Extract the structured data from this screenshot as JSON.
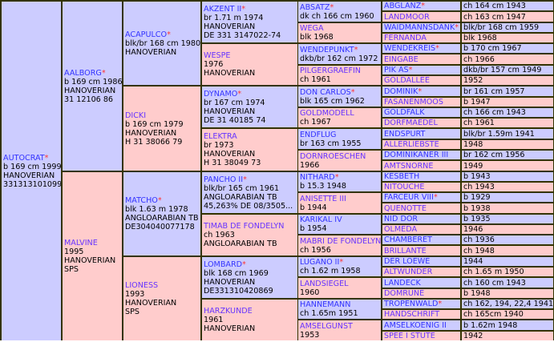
{
  "colors": {
    "sire": "#ccccff",
    "dam": "#ffcccc",
    "border": "#333300",
    "name": "#3333ff",
    "star": "#ff3333"
  },
  "gen": [
    [
      {
        "name": "AUTOCRAT",
        "star": true,
        "lines": [
          "b 169 cm 1999",
          "HANOVERIAN",
          "331313101099"
        ]
      }
    ],
    [
      {
        "name": "AALBORG",
        "star": true,
        "lines": [
          "b 169 cm 1986",
          "HANOVERIAN",
          "31 12106 86"
        ]
      },
      {
        "name": "MALVINE",
        "star": false,
        "lines": [
          "1995",
          "HANOVERIAN",
          "SPS"
        ]
      }
    ],
    [
      {
        "name": "ACAPULCO",
        "star": true,
        "lines": [
          "blk/br 168 cm 1980",
          "HANOVERIAN"
        ]
      },
      {
        "name": "DICKI",
        "star": false,
        "lines": [
          "b 169 cm 1979",
          "HANOVERIAN",
          "H 31 38066 79"
        ]
      },
      {
        "name": "MATCHO",
        "star": true,
        "lines": [
          "blk 1.63 m 1978",
          "ANGLOARABIAN TB",
          "DE304040077178"
        ]
      },
      {
        "name": "LIONESS",
        "star": false,
        "lines": [
          "1993",
          "HANOVERIAN",
          "SPS"
        ]
      }
    ],
    [
      {
        "name": "AKZENT II",
        "star": true,
        "lines": [
          "br 1.71 m 1974",
          "HANOVERIAN",
          "DE 331 3147022-74"
        ]
      },
      {
        "name": "WESPE",
        "star": false,
        "lines": [
          "1976",
          "HANOVERIAN"
        ]
      },
      {
        "name": "DYNAMO",
        "star": true,
        "lines": [
          "br 167 cm 1974",
          "HANOVERIAN",
          "DE 31 40185 74"
        ]
      },
      {
        "name": "ELEKTRA",
        "star": false,
        "lines": [
          "br 1973",
          "HANOVERIAN",
          "H 31 38049 73"
        ]
      },
      {
        "name": "PANCHO II",
        "star": true,
        "lines": [
          "blk/br 165 cm 1961",
          "ANGLOARABIAN TB",
          "45,263% DE 08/3505..."
        ]
      },
      {
        "name": "TIMAB DE FONDELYN",
        "star": false,
        "lines": [
          "ch 1963",
          "ANGLOARABIAN TB"
        ]
      },
      {
        "name": "LOMBARD",
        "star": true,
        "lines": [
          "blk 168 cm 1969",
          "HANOVERIAN",
          "DE331310420869"
        ]
      },
      {
        "name": "HARZKUNDE",
        "star": false,
        "lines": [
          "1961",
          "HANOVERIAN"
        ]
      }
    ],
    [
      {
        "name": "ABSATZ",
        "star": true,
        "lines": [
          "dk ch 166 cm 1960"
        ]
      },
      {
        "name": "WEGA",
        "star": false,
        "lines": [
          "blk 1968"
        ]
      },
      {
        "name": "WENDEPUNKT",
        "star": true,
        "lines": [
          "dkb/br 162 cm 1972"
        ]
      },
      {
        "name": "PILGERGRAEFIN",
        "star": false,
        "lines": [
          "ch 1961"
        ]
      },
      {
        "name": "DON CARLOS",
        "star": true,
        "lines": [
          "blk 165 cm 1962"
        ]
      },
      {
        "name": "GOLDMODELL",
        "star": false,
        "lines": [
          "ch 1967"
        ]
      },
      {
        "name": "ENDFLUG",
        "star": false,
        "lines": [
          "br 163 cm 1955"
        ]
      },
      {
        "name": "DORNROESCHEN",
        "star": false,
        "lines": [
          "1966"
        ]
      },
      {
        "name": "NITHARD",
        "star": true,
        "lines": [
          "b 15.3 1948"
        ]
      },
      {
        "name": "ANISETTE III",
        "star": false,
        "lines": [
          "b 1944"
        ]
      },
      {
        "name": "KARIKAL IV",
        "star": false,
        "lines": [
          "b 1954"
        ]
      },
      {
        "name": "MABRI DE FONDELYN",
        "star": false,
        "lines": [
          "ch 1956"
        ]
      },
      {
        "name": "LUGANO II",
        "star": true,
        "lines": [
          "ch 1.62 m 1958"
        ]
      },
      {
        "name": "LANDSIEGEL",
        "star": false,
        "lines": [
          "1960"
        ]
      },
      {
        "name": "HANNEMANN",
        "star": false,
        "lines": [
          "ch 1.65m 1951"
        ]
      },
      {
        "name": "AMSELGUNST",
        "star": false,
        "lines": [
          "1953"
        ]
      }
    ],
    [
      {
        "name": "ABGLANZ",
        "star": true,
        "lines": [
          "ch 164 cm 1943"
        ]
      },
      {
        "name": "LANDMOOR",
        "star": false,
        "lines": [
          "ch 163 cm 1947"
        ]
      },
      {
        "name": "WAIDMANNSDANK",
        "star": true,
        "lines": [
          "blk/br 168 cm 1959"
        ]
      },
      {
        "name": "FERNANDA",
        "star": false,
        "lines": [
          "blk 1968"
        ]
      },
      {
        "name": "WENDEKREIS",
        "star": true,
        "lines": [
          "b 170 cm 1967"
        ]
      },
      {
        "name": "EINGABE",
        "star": false,
        "lines": [
          "ch 1966"
        ]
      },
      {
        "name": "PIK AS",
        "star": true,
        "lines": [
          "dkb/br 157 cm 1949"
        ]
      },
      {
        "name": "GOLDALLEE",
        "star": false,
        "lines": [
          "1952"
        ]
      },
      {
        "name": "DOMINIK",
        "star": true,
        "lines": [
          "br 161 cm 1957"
        ]
      },
      {
        "name": "FASANENMOOS",
        "star": false,
        "lines": [
          "b 1947"
        ]
      },
      {
        "name": "GOLDFALK",
        "star": false,
        "lines": [
          "ch 166 cm 1943"
        ]
      },
      {
        "name": "DORFMAEDEL",
        "star": false,
        "lines": [
          "ch 1961"
        ]
      },
      {
        "name": "ENDSPURT",
        "star": false,
        "lines": [
          "blk/br 1.59m 1941"
        ]
      },
      {
        "name": "ALLERLIEBSTE",
        "star": false,
        "lines": [
          "1948"
        ]
      },
      {
        "name": "DOMINIKANER III",
        "star": false,
        "lines": [
          "br 162 cm 1956"
        ]
      },
      {
        "name": "AMTSNORNE",
        "star": false,
        "lines": [
          "1949"
        ]
      },
      {
        "name": "KESBETH",
        "star": false,
        "lines": [
          "b 1943"
        ]
      },
      {
        "name": "NITOUCHE",
        "star": false,
        "lines": [
          "ch 1943"
        ]
      },
      {
        "name": "FARCEUR VIII",
        "star": true,
        "lines": [
          "b 1929"
        ]
      },
      {
        "name": "QUENOTTE",
        "star": false,
        "lines": [
          "b 1938"
        ]
      },
      {
        "name": "NID DOR",
        "star": false,
        "lines": [
          "b 1935"
        ]
      },
      {
        "name": "OLMEDA",
        "star": false,
        "lines": [
          "1946"
        ]
      },
      {
        "name": "CHAMBERET",
        "star": false,
        "lines": [
          "ch 1936"
        ]
      },
      {
        "name": "BRILLANTE",
        "star": false,
        "lines": [
          "ch 1948"
        ]
      },
      {
        "name": "DER LOEWE",
        "star": false,
        "lines": [
          "1944"
        ]
      },
      {
        "name": "ALTWUNDER",
        "star": false,
        "lines": [
          "ch 1.65 m 1950"
        ]
      },
      {
        "name": "LANDECK",
        "star": false,
        "lines": [
          "ch 160 cm 1943"
        ]
      },
      {
        "name": "DOMRUNE",
        "star": false,
        "lines": [
          "b 1948"
        ]
      },
      {
        "name": "TROPENWALD",
        "star": true,
        "lines": [
          "ch 162, 194, 22,4 1941"
        ]
      },
      {
        "name": "HANDSCHRIFT",
        "star": false,
        "lines": [
          "ch 165cm 1940"
        ]
      },
      {
        "name": "AMSELKOENIG II",
        "star": false,
        "lines": [
          "b 1.62m 1948"
        ]
      },
      {
        "name": "SPEE I STUTE",
        "star": false,
        "lines": [
          "1942"
        ]
      }
    ]
  ],
  "star_symbol": "*"
}
